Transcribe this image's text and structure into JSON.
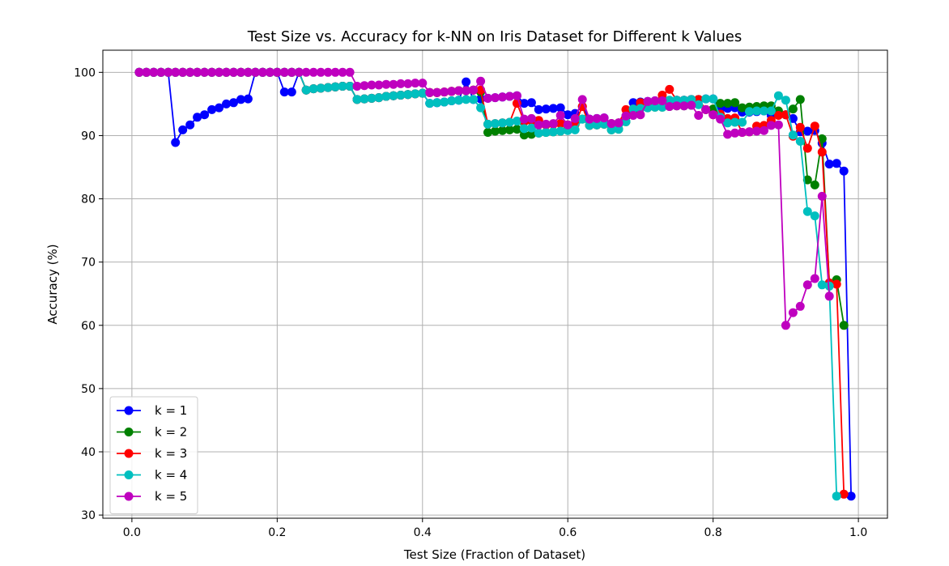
{
  "chart_data": {
    "type": "line",
    "title": "Test Size vs. Accuracy for k-NN on Iris Dataset for Different k Values",
    "xlabel": "Test Size (Fraction of Dataset)",
    "ylabel": "Accuracy (%)",
    "xlim": [
      -0.04,
      1.04
    ],
    "ylim": [
      29.5,
      103.5
    ],
    "xticks": [
      0.0,
      0.2,
      0.4,
      0.6,
      0.8,
      1.0
    ],
    "xtick_labels": [
      "0.0",
      "0.2",
      "0.4",
      "0.6",
      "0.8",
      "1.0"
    ],
    "yticks": [
      30,
      40,
      50,
      60,
      70,
      80,
      90,
      100
    ],
    "ytick_labels": [
      "30",
      "40",
      "50",
      "60",
      "70",
      "80",
      "90",
      "100"
    ],
    "grid": true,
    "legend_position": "bottom-left",
    "series": [
      {
        "name": "k = 1",
        "color": "#0000ff",
        "x": [
          0.01,
          0.02,
          0.03,
          0.04,
          0.05,
          0.06,
          0.07,
          0.08,
          0.09,
          0.1,
          0.11,
          0.12,
          0.13,
          0.14,
          0.15,
          0.16,
          0.17,
          0.18,
          0.19,
          0.2,
          0.21,
          0.22,
          0.23,
          0.24,
          0.25,
          0.26,
          0.27,
          0.28,
          0.29,
          0.3,
          0.31,
          0.32,
          0.33,
          0.34,
          0.35,
          0.36,
          0.37,
          0.38,
          0.39,
          0.4,
          0.41,
          0.42,
          0.43,
          0.44,
          0.45,
          0.46,
          0.47,
          0.48,
          0.49,
          0.5,
          0.51,
          0.52,
          0.53,
          0.54,
          0.55,
          0.56,
          0.57,
          0.58,
          0.59,
          0.6,
          0.61,
          0.62,
          0.63,
          0.64,
          0.65,
          0.66,
          0.67,
          0.68,
          0.69,
          0.7,
          0.71,
          0.72,
          0.73,
          0.74,
          0.75,
          0.76,
          0.77,
          0.78,
          0.79,
          0.8,
          0.81,
          0.82,
          0.83,
          0.84,
          0.85,
          0.86,
          0.87,
          0.88,
          0.89,
          0.9,
          0.91,
          0.92,
          0.93,
          0.94,
          0.95,
          0.96,
          0.97,
          0.98,
          0.99
        ],
        "y": [
          100,
          100,
          100,
          100,
          100,
          88.9,
          90.9,
          91.7,
          92.9,
          93.3,
          94.1,
          94.4,
          95.0,
          95.2,
          95.7,
          95.8,
          100,
          100,
          100,
          100,
          96.9,
          96.9,
          100,
          97.2,
          97.4,
          97.5,
          97.6,
          97.7,
          97.8,
          97.8,
          95.7,
          95.8,
          95.9,
          96.0,
          96.2,
          96.3,
          96.4,
          96.5,
          96.6,
          96.7,
          95.1,
          95.2,
          95.3,
          95.5,
          95.6,
          98.5,
          95.7,
          95.8,
          95.9,
          96.0,
          96.1,
          96.2,
          96.3,
          95.1,
          95.2,
          94.1,
          94.2,
          94.3,
          94.4,
          93.3,
          93.5,
          94.6,
          92.6,
          92.7,
          92.8,
          91.9,
          92.0,
          93.1,
          95.2,
          95.3,
          95.4,
          95.5,
          95.6,
          95.5,
          95.6,
          95.6,
          95.7,
          95.7,
          95.8,
          95.8,
          94.2,
          94.3,
          94.4,
          93.7,
          93.7,
          93.8,
          93.9,
          93.2,
          93.3,
          93.3,
          92.7,
          90.6,
          90.7,
          90.8,
          88.8,
          85.5,
          85.6,
          84.4,
          33.0
        ]
      },
      {
        "name": "k = 2",
        "color": "#008000",
        "x": [
          0.01,
          0.02,
          0.03,
          0.04,
          0.05,
          0.06,
          0.07,
          0.08,
          0.09,
          0.1,
          0.11,
          0.12,
          0.13,
          0.14,
          0.15,
          0.16,
          0.17,
          0.18,
          0.19,
          0.2,
          0.21,
          0.22,
          0.23,
          0.24,
          0.25,
          0.26,
          0.27,
          0.28,
          0.29,
          0.3,
          0.31,
          0.32,
          0.33,
          0.34,
          0.35,
          0.36,
          0.37,
          0.38,
          0.39,
          0.4,
          0.41,
          0.42,
          0.43,
          0.44,
          0.45,
          0.46,
          0.47,
          0.48,
          0.49,
          0.5,
          0.51,
          0.52,
          0.53,
          0.54,
          0.55,
          0.56,
          0.57,
          0.58,
          0.59,
          0.6,
          0.61,
          0.62,
          0.63,
          0.64,
          0.65,
          0.66,
          0.67,
          0.68,
          0.69,
          0.7,
          0.71,
          0.72,
          0.73,
          0.74,
          0.75,
          0.76,
          0.77,
          0.78,
          0.79,
          0.8,
          0.81,
          0.82,
          0.83,
          0.84,
          0.85,
          0.86,
          0.87,
          0.88,
          0.89,
          0.9,
          0.91,
          0.92,
          0.93,
          0.94,
          0.95,
          0.96,
          0.97,
          0.98
        ],
        "y": [
          100,
          100,
          100,
          100,
          100,
          100,
          100,
          100,
          100,
          100,
          100,
          100,
          100,
          100,
          100,
          100,
          100,
          100,
          100,
          100,
          100,
          100,
          100,
          97.2,
          97.4,
          97.5,
          97.6,
          97.7,
          97.8,
          97.8,
          95.7,
          95.8,
          95.9,
          96.0,
          96.2,
          96.3,
          96.4,
          96.5,
          96.6,
          96.7,
          96.8,
          96.8,
          96.9,
          97.0,
          97.1,
          97.1,
          97.2,
          96.9,
          90.5,
          90.7,
          90.8,
          90.9,
          91.0,
          90.1,
          90.2,
          90.4,
          90.5,
          90.6,
          90.7,
          91.7,
          91.8,
          92.6,
          91.6,
          91.7,
          91.8,
          90.9,
          91.0,
          92.2,
          93.3,
          94.3,
          94.4,
          94.5,
          94.5,
          94.6,
          94.7,
          94.7,
          94.8,
          95.7,
          94.1,
          94.2,
          95.1,
          95.1,
          95.2,
          94.4,
          94.5,
          94.6,
          94.7,
          94.7,
          93.9,
          93.3,
          94.2,
          95.7,
          83.0,
          82.2,
          89.5,
          66.7,
          67.2,
          60.0
        ]
      },
      {
        "name": "k = 3",
        "color": "#ff0000",
        "x": [
          0.01,
          0.02,
          0.03,
          0.04,
          0.05,
          0.06,
          0.07,
          0.08,
          0.09,
          0.1,
          0.11,
          0.12,
          0.13,
          0.14,
          0.15,
          0.16,
          0.17,
          0.18,
          0.19,
          0.2,
          0.21,
          0.22,
          0.23,
          0.24,
          0.25,
          0.26,
          0.27,
          0.28,
          0.29,
          0.3,
          0.31,
          0.32,
          0.33,
          0.34,
          0.35,
          0.36,
          0.37,
          0.38,
          0.39,
          0.4,
          0.41,
          0.42,
          0.43,
          0.44,
          0.45,
          0.46,
          0.47,
          0.48,
          0.49,
          0.5,
          0.51,
          0.52,
          0.53,
          0.54,
          0.55,
          0.56,
          0.57,
          0.58,
          0.59,
          0.6,
          0.61,
          0.62,
          0.63,
          0.64,
          0.65,
          0.66,
          0.67,
          0.68,
          0.69,
          0.7,
          0.71,
          0.72,
          0.73,
          0.74,
          0.75,
          0.76,
          0.77,
          0.78,
          0.79,
          0.8,
          0.81,
          0.82,
          0.83,
          0.84,
          0.85,
          0.86,
          0.87,
          0.88,
          0.89,
          0.9,
          0.91,
          0.92,
          0.93,
          0.94,
          0.95,
          0.96,
          0.97,
          0.98
        ],
        "y": [
          100,
          100,
          100,
          100,
          100,
          100,
          100,
          100,
          100,
          100,
          100,
          100,
          100,
          100,
          100,
          100,
          100,
          100,
          100,
          100,
          100,
          100,
          100,
          97.2,
          97.4,
          97.5,
          97.6,
          97.7,
          97.8,
          97.8,
          95.7,
          95.8,
          95.9,
          96.0,
          96.2,
          96.3,
          96.4,
          96.5,
          96.6,
          96.7,
          96.8,
          96.8,
          96.9,
          97.0,
          97.1,
          97.1,
          97.2,
          97.2,
          91.8,
          91.9,
          92.0,
          92.1,
          95.1,
          92.2,
          92.3,
          92.4,
          91.7,
          91.8,
          91.9,
          91.7,
          91.8,
          94.6,
          91.6,
          91.7,
          91.8,
          91.9,
          92.0,
          94.1,
          94.2,
          95.2,
          95.3,
          95.4,
          96.4,
          97.3,
          95.6,
          95.6,
          95.7,
          95.7,
          94.1,
          93.3,
          93.4,
          92.7,
          92.8,
          90.5,
          90.6,
          91.5,
          91.6,
          92.4,
          93.2,
          93.3,
          89.9,
          91.3,
          88.0,
          91.5,
          87.4,
          66.7,
          66.5,
          33.3
        ]
      },
      {
        "name": "k = 4",
        "color": "#00bfbf",
        "x": [
          0.01,
          0.02,
          0.03,
          0.04,
          0.05,
          0.06,
          0.07,
          0.08,
          0.09,
          0.1,
          0.11,
          0.12,
          0.13,
          0.14,
          0.15,
          0.16,
          0.17,
          0.18,
          0.19,
          0.2,
          0.21,
          0.22,
          0.23,
          0.24,
          0.25,
          0.26,
          0.27,
          0.28,
          0.29,
          0.3,
          0.31,
          0.32,
          0.33,
          0.34,
          0.35,
          0.36,
          0.37,
          0.38,
          0.39,
          0.4,
          0.41,
          0.42,
          0.43,
          0.44,
          0.45,
          0.46,
          0.47,
          0.48,
          0.49,
          0.5,
          0.51,
          0.52,
          0.53,
          0.54,
          0.55,
          0.56,
          0.57,
          0.58,
          0.59,
          0.6,
          0.61,
          0.62,
          0.63,
          0.64,
          0.65,
          0.66,
          0.67,
          0.68,
          0.69,
          0.7,
          0.71,
          0.72,
          0.73,
          0.74,
          0.75,
          0.76,
          0.77,
          0.78,
          0.79,
          0.8,
          0.81,
          0.82,
          0.83,
          0.84,
          0.85,
          0.86,
          0.87,
          0.88,
          0.89,
          0.9,
          0.91,
          0.92,
          0.93,
          0.94,
          0.95,
          0.96,
          0.97
        ],
        "y": [
          100,
          100,
          100,
          100,
          100,
          100,
          100,
          100,
          100,
          100,
          100,
          100,
          100,
          100,
          100,
          100,
          100,
          100,
          100,
          100,
          100,
          100,
          100,
          97.2,
          97.4,
          97.5,
          97.6,
          97.7,
          97.8,
          97.8,
          95.7,
          95.8,
          95.9,
          96.0,
          96.2,
          96.3,
          96.4,
          96.5,
          96.6,
          96.7,
          95.1,
          95.2,
          95.3,
          95.5,
          95.6,
          95.7,
          95.7,
          94.4,
          91.8,
          91.9,
          92.0,
          92.1,
          92.3,
          91.1,
          91.2,
          90.4,
          90.5,
          90.6,
          90.7,
          90.8,
          90.9,
          92.6,
          91.6,
          91.7,
          91.8,
          90.9,
          91.0,
          92.2,
          94.2,
          94.3,
          94.4,
          94.5,
          94.5,
          95.6,
          95.6,
          95.6,
          95.7,
          94.9,
          95.8,
          95.8,
          92.9,
          92.0,
          92.1,
          92.1,
          93.8,
          93.9,
          93.9,
          93.9,
          96.3,
          95.6,
          90.1,
          89.1,
          78.0,
          77.3,
          66.4,
          66.2,
          33.0
        ]
      },
      {
        "name": "k = 5",
        "color": "#bf00bf",
        "x": [
          0.01,
          0.02,
          0.03,
          0.04,
          0.05,
          0.06,
          0.07,
          0.08,
          0.09,
          0.1,
          0.11,
          0.12,
          0.13,
          0.14,
          0.15,
          0.16,
          0.17,
          0.18,
          0.19,
          0.2,
          0.21,
          0.22,
          0.23,
          0.24,
          0.25,
          0.26,
          0.27,
          0.28,
          0.29,
          0.3,
          0.31,
          0.32,
          0.33,
          0.34,
          0.35,
          0.36,
          0.37,
          0.38,
          0.39,
          0.4,
          0.41,
          0.42,
          0.43,
          0.44,
          0.45,
          0.46,
          0.47,
          0.48,
          0.49,
          0.5,
          0.51,
          0.52,
          0.53,
          0.54,
          0.55,
          0.56,
          0.57,
          0.58,
          0.59,
          0.6,
          0.61,
          0.62,
          0.63,
          0.64,
          0.65,
          0.66,
          0.67,
          0.68,
          0.69,
          0.7,
          0.71,
          0.72,
          0.73,
          0.74,
          0.75,
          0.76,
          0.77,
          0.78,
          0.79,
          0.8,
          0.81,
          0.82,
          0.83,
          0.84,
          0.85,
          0.86,
          0.87,
          0.88,
          0.89,
          0.9,
          0.91,
          0.92,
          0.93,
          0.94,
          0.95,
          0.96
        ],
        "y": [
          100,
          100,
          100,
          100,
          100,
          100,
          100,
          100,
          100,
          100,
          100,
          100,
          100,
          100,
          100,
          100,
          100,
          100,
          100,
          100,
          100,
          100,
          100,
          100,
          100,
          100,
          100,
          100,
          100,
          100,
          97.8,
          97.9,
          98.0,
          98.0,
          98.1,
          98.1,
          98.2,
          98.2,
          98.3,
          98.3,
          96.8,
          96.8,
          96.9,
          97.0,
          97.1,
          97.1,
          97.2,
          98.6,
          95.9,
          96.0,
          96.1,
          96.2,
          96.3,
          92.6,
          92.7,
          91.7,
          91.8,
          91.9,
          93.2,
          91.7,
          92.7,
          95.7,
          92.6,
          92.7,
          92.8,
          91.9,
          92.0,
          93.1,
          93.2,
          93.3,
          95.4,
          95.5,
          95.5,
          94.6,
          94.7,
          94.7,
          94.8,
          93.2,
          94.1,
          93.3,
          92.6,
          90.2,
          90.4,
          90.5,
          90.6,
          90.7,
          90.8,
          91.6,
          91.7,
          60.0,
          62.0,
          63.0,
          66.4,
          67.4,
          80.4,
          64.6
        ]
      }
    ]
  }
}
